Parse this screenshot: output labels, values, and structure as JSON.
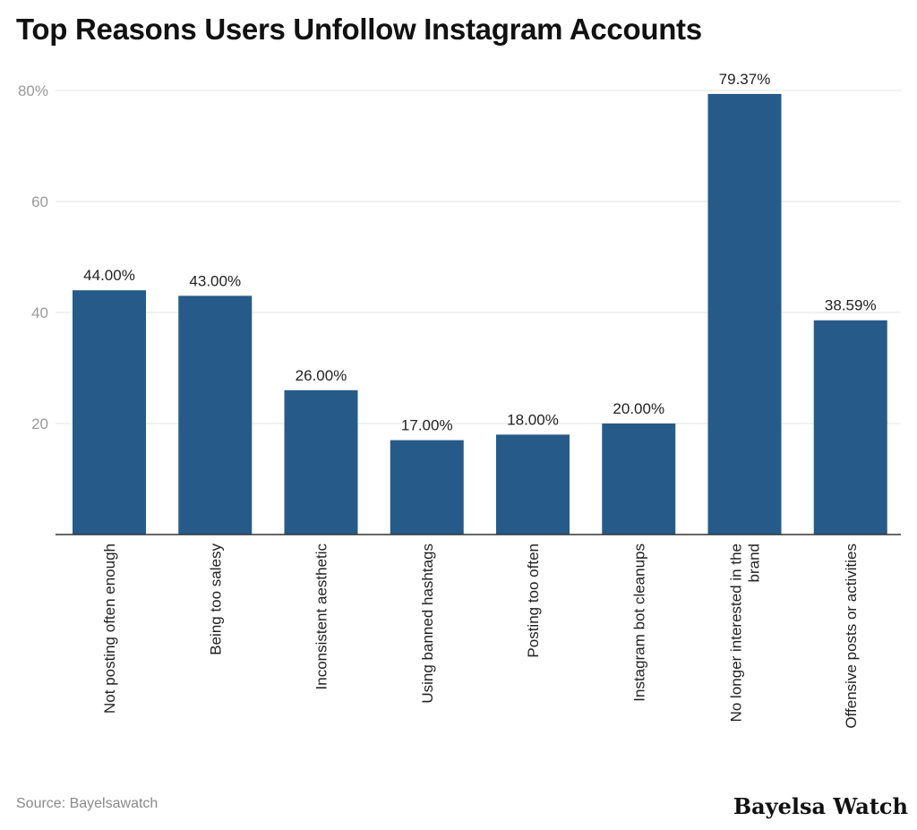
{
  "chart_data": {
    "type": "bar",
    "title": "Top Reasons Users Unfollow Instagram Accounts",
    "categories": [
      "Not posting often enough",
      "Being too salesy",
      "Inconsistent aesthetic",
      "Using banned hashtags",
      "Posting too often",
      "Instagram bot cleanups",
      "No longer interested in the brand",
      "Offensive posts or activities"
    ],
    "values": [
      44.0,
      43.0,
      26.0,
      17.0,
      18.0,
      20.0,
      79.37,
      38.59
    ],
    "value_labels": [
      "44.00%",
      "43.00%",
      "26.00%",
      "17.00%",
      "18.00%",
      "20.00%",
      "79.37%",
      "38.59%"
    ],
    "ylim": [
      0,
      80
    ],
    "yticks": [
      20,
      40,
      60,
      80
    ],
    "ytick_labels": [
      "20",
      "40",
      "60",
      "80%"
    ],
    "grid": true,
    "bar_color": "#265b89"
  },
  "footer": {
    "source": "Source: Bayelsawatch",
    "brand": "Bayelsa Watch"
  }
}
